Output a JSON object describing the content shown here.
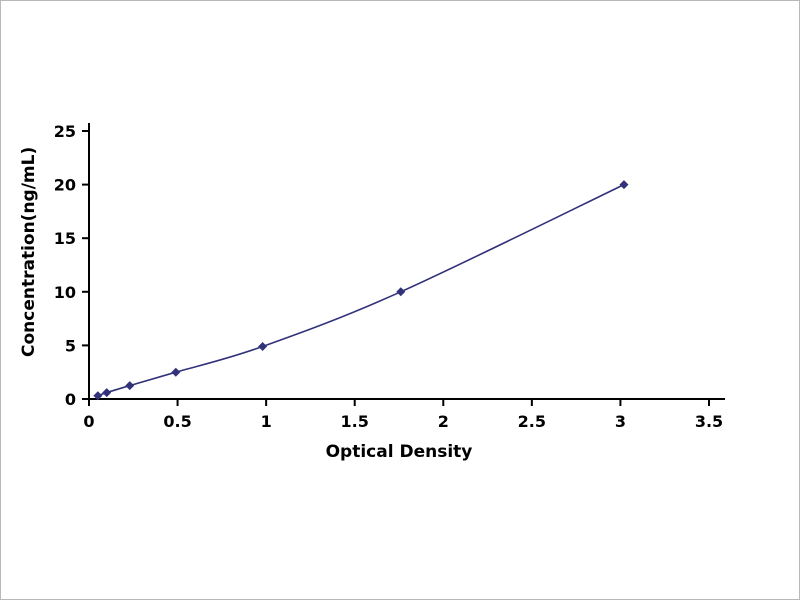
{
  "chart_data": {
    "type": "line",
    "title": "",
    "xlabel": "Optical Density",
    "ylabel": "Concentration(ng/mL)",
    "x": [
      0.05,
      0.1,
      0.23,
      0.49,
      0.98,
      1.76,
      3.02
    ],
    "y": [
      0.3,
      0.6,
      1.25,
      2.5,
      4.9,
      10,
      20
    ],
    "xlim": [
      0,
      3.5
    ],
    "ylim": [
      0,
      25
    ],
    "xticks": [
      0,
      0.5,
      1,
      1.5,
      2,
      2.5,
      3,
      3.5
    ],
    "yticks": [
      0,
      5,
      10,
      15,
      20,
      25
    ],
    "line_color": "#32327a",
    "marker_color": "#32327a",
    "marker": "diamond",
    "grid": false,
    "legend": "none",
    "axis_color": "#000000"
  }
}
